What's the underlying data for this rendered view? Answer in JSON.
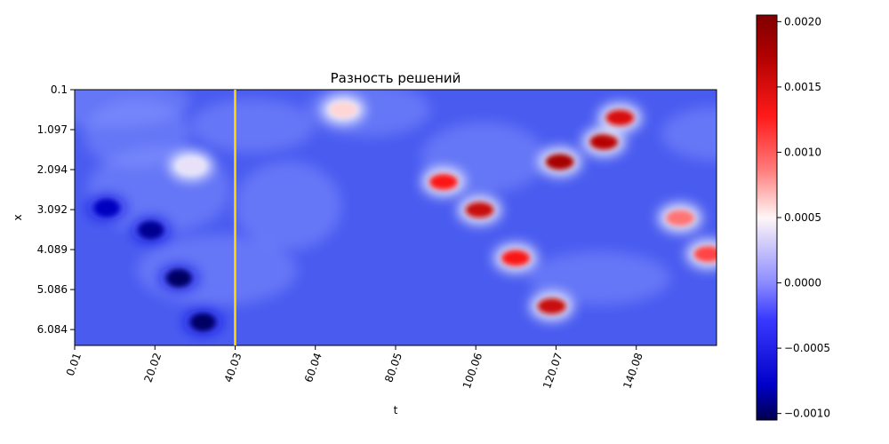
{
  "chart_data": {
    "type": "heatmap",
    "title": "Разность решений",
    "xlabel": "t",
    "ylabel": "x",
    "x_ticks": [
      "0.01",
      "20.02",
      "40.03",
      "60.04",
      "80.05",
      "100.06",
      "120.07",
      "140.08"
    ],
    "y_ticks": [
      "0.1",
      "1.097",
      "2.094",
      "3.092",
      "4.089",
      "5.086",
      "6.084"
    ],
    "x_range": [
      0.01,
      160.1
    ],
    "y_range": [
      0.1,
      6.48
    ],
    "y_inverted": true,
    "colormap": "seismic",
    "value_range": [
      -0.00105,
      0.00205
    ],
    "colorbar_ticks": [
      "0.0020",
      "0.0015",
      "0.0010",
      "0.0005",
      "0.0000",
      "−0.0005",
      "−0.0010"
    ],
    "colorbar_tick_values": [
      0.002,
      0.0015,
      0.001,
      0.0005,
      0.0,
      -0.0005,
      -0.001
    ],
    "vertical_line": {
      "t": 40.03,
      "color": "#ffdd00"
    },
    "features": [
      {
        "t": 8,
        "x": 3.05,
        "value": -0.0008
      },
      {
        "t": 19,
        "x": 3.6,
        "value": -0.0009
      },
      {
        "t": 26,
        "x": 4.8,
        "value": -0.001
      },
      {
        "t": 32,
        "x": 5.9,
        "value": -0.001
      },
      {
        "t": 29,
        "x": 2.0,
        "value": 0.0004
      },
      {
        "t": 67,
        "x": 0.6,
        "value": 0.0006
      },
      {
        "t": 92,
        "x": 2.4,
        "value": 0.0013
      },
      {
        "t": 101,
        "x": 3.1,
        "value": 0.0016
      },
      {
        "t": 110,
        "x": 4.3,
        "value": 0.0013
      },
      {
        "t": 119,
        "x": 5.5,
        "value": 0.0016
      },
      {
        "t": 121,
        "x": 1.9,
        "value": 0.0018
      },
      {
        "t": 132,
        "x": 1.4,
        "value": 0.0017
      },
      {
        "t": 136,
        "x": 0.8,
        "value": 0.0015
      },
      {
        "t": 151,
        "x": 3.3,
        "value": 0.0009
      },
      {
        "t": 158,
        "x": 4.2,
        "value": 0.0011
      }
    ]
  }
}
